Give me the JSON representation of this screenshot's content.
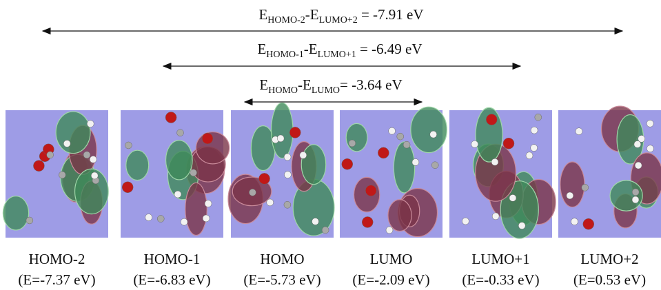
{
  "gaps": [
    {
      "e": "E",
      "from": "HOMO-2",
      "sep": "-E",
      "to": "LUMO+2",
      "value": " = -7.91 eV"
    },
    {
      "e": "E",
      "from": "HOMO-1",
      "sep": "-E",
      "to": "LUMO+1",
      "value": " = -6.49 eV"
    },
    {
      "e": "E",
      "from": "HOMO",
      "sep": "-E",
      "to": "LUMO",
      "value": "= -3.64 eV"
    }
  ],
  "orbitals": [
    {
      "name": "HOMO-2",
      "energy": "(E=-7.37 eV)"
    },
    {
      "name": "HOMO-1",
      "energy": "(E=-6.83 eV)"
    },
    {
      "name": "HOMO",
      "energy": "(E=-5.73 eV)"
    },
    {
      "name": "LUMO",
      "energy": "(E=-2.09 eV)"
    },
    {
      "name": "LUMO+1",
      "energy": "(E=-0.33 eV)"
    },
    {
      "name": "LUMO+2",
      "energy": "(E=0.53 eV)"
    }
  ]
}
